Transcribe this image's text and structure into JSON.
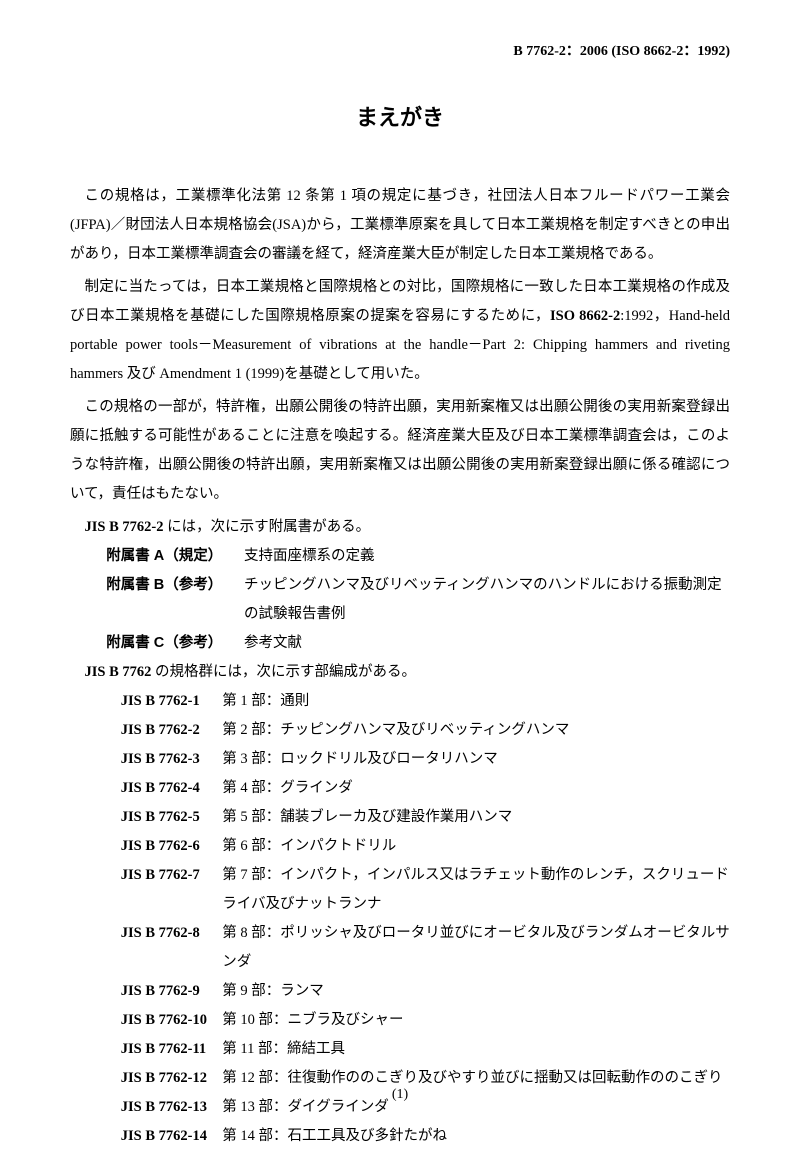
{
  "header": {
    "code": "B 7762-2：2006 (ISO 8662-2：1992)"
  },
  "title": "まえがき",
  "paragraphs": {
    "p1": "この規格は，工業標準化法第 12 条第 1 項の規定に基づき，社団法人日本フルードパワー工業会(JFPA)／財団法人日本規格協会(JSA)から，工業標準原案を具して日本工業規格を制定すべきとの申出があり，日本工業標準調査会の審議を経て，経済産業大臣が制定した日本工業規格である。",
    "p2_pre": "制定に当たっては，日本工業規格と国際規格との対比，国際規格に一致した日本工業規格の作成及び日本工業規格を基礎にした国際規格原案の提案を容易にするために，",
    "p2_bold": "ISO 8662-2",
    "p2_post": ":1992，Hand-held portable power tools－Measurement of vibrations at the handle－Part 2: Chipping hammers and riveting hammers 及び Amendment 1 (1999)を基礎として用いた。",
    "p3": "この規格の一部が，特許権，出願公開後の特許出願，実用新案権又は出願公開後の実用新案登録出願に抵触する可能性があることに注意を喚起する。経済産業大臣及び日本工業標準調査会は，このような特許権，出願公開後の特許出願，実用新案権又は出願公開後の実用新案登録出願に係る確認について，責任はもたない。"
  },
  "jis_intro": {
    "bold": "JIS B 7762-2",
    "text": " には，次に示す附属書がある。"
  },
  "annexes": [
    {
      "label": "附属書 A（規定）",
      "content": "支持面座標系の定義"
    },
    {
      "label": "附属書 B（参考）",
      "content": "チッピングハンマ及びリベッティングハンマのハンドルにおける振動測定の試験報告書例"
    },
    {
      "label": "附属書 C（参考）",
      "content": "参考文献"
    }
  ],
  "parts_intro": {
    "bold": "JIS B 7762",
    "text": " の規格群には，次に示す部編成がある。"
  },
  "parts": [
    {
      "code": "JIS B 7762-1",
      "content": "第 1 部：通則"
    },
    {
      "code": "JIS B 7762-2",
      "content": "第 2 部：チッピングハンマ及びリベッティングハンマ"
    },
    {
      "code": "JIS B 7762-3",
      "content": "第 3 部：ロックドリル及びロータリハンマ"
    },
    {
      "code": "JIS B 7762-4",
      "content": "第 4 部：グラインダ"
    },
    {
      "code": "JIS B 7762-5",
      "content": "第 5 部：舗装ブレーカ及び建設作業用ハンマ"
    },
    {
      "code": "JIS B 7762-6",
      "content": "第 6 部：インパクトドリル"
    },
    {
      "code": "JIS B 7762-7",
      "content": "第 7 部：インパクト，インパルス又はラチェット動作のレンチ，スクリュードライバ及びナットランナ"
    },
    {
      "code": "JIS B 7762-8",
      "content": "第 8 部：ポリッシャ及びロータリ並びにオービタル及びランダムオービタルサンダ"
    },
    {
      "code": "JIS B 7762-9",
      "content": "第 9 部：ランマ"
    },
    {
      "code": "JIS B 7762-10",
      "content": "第 10 部：ニブラ及びシャー"
    },
    {
      "code": "JIS B 7762-11",
      "content": "第 11 部：締結工具"
    },
    {
      "code": "JIS B 7762-12",
      "content": "第 12 部：往復動作ののこぎり及びやすり並びに揺動又は回転動作ののこぎり"
    },
    {
      "code": "JIS B 7762-13",
      "content": "第 13 部：ダイグラインダ"
    },
    {
      "code": "JIS B 7762-14",
      "content": "第 14 部：石工工具及び多針たがね"
    }
  ],
  "page_number": "(1)"
}
